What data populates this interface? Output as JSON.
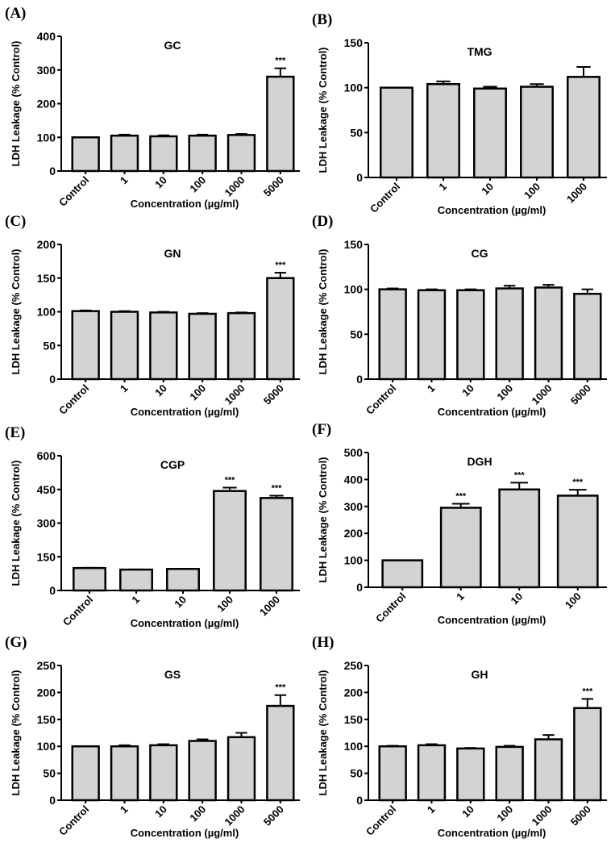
{
  "chart_data": [
    {
      "panel": "(A)",
      "type": "bar",
      "title": "GC",
      "categories": [
        "Control",
        "1",
        "10",
        "100",
        "1000",
        "5000"
      ],
      "values": [
        100,
        105,
        103,
        105,
        107,
        280
      ],
      "errors": [
        0,
        3,
        3,
        3,
        3,
        25
      ],
      "significance": [
        "",
        "",
        "",
        "",
        "",
        "***"
      ],
      "ylim": [
        0,
        400
      ],
      "yticks": [
        0,
        100,
        200,
        300,
        400
      ],
      "xlabel": "Concentration (µg/ml)",
      "ylabel": "LDH Leakage (% Control)"
    },
    {
      "panel": "(B)",
      "type": "bar",
      "title": "TMG",
      "categories": [
        "Control",
        "1",
        "10",
        "100",
        "1000"
      ],
      "values": [
        100,
        104,
        99,
        101,
        112
      ],
      "errors": [
        0,
        3,
        2,
        3,
        11
      ],
      "significance": [
        "",
        "",
        "",
        "",
        ""
      ],
      "ylim": [
        0,
        150
      ],
      "yticks": [
        0,
        50,
        100,
        150
      ],
      "xlabel": "Concentration (µg/ml)",
      "ylabel": "LDH Leakage (% Control)"
    },
    {
      "panel": "(C)",
      "type": "bar",
      "title": "GN",
      "categories": [
        "Control",
        "1",
        "10",
        "100",
        "1000",
        "5000"
      ],
      "values": [
        101,
        100,
        99,
        97,
        98,
        150
      ],
      "errors": [
        1,
        1,
        1,
        1,
        1,
        8
      ],
      "significance": [
        "",
        "",
        "",
        "",
        "",
        "***"
      ],
      "ylim": [
        0,
        200
      ],
      "yticks": [
        0,
        50,
        100,
        150,
        200
      ],
      "xlabel": "Concentration (µg/ml)",
      "ylabel": "LDH Leakage (% Control)"
    },
    {
      "panel": "(D)",
      "type": "bar",
      "title": "CG",
      "categories": [
        "Control",
        "1",
        "10",
        "100",
        "1000",
        "5000"
      ],
      "values": [
        100,
        99,
        99,
        101,
        102,
        95
      ],
      "errors": [
        1,
        1,
        1,
        3,
        3,
        5
      ],
      "significance": [
        "",
        "",
        "",
        "",
        "",
        ""
      ],
      "ylim": [
        0,
        150
      ],
      "yticks": [
        0,
        50,
        100,
        150
      ],
      "xlabel": "Concentration (µg/ml)",
      "ylabel": "LDH Leakage (% Control)"
    },
    {
      "panel": "(E)",
      "type": "bar",
      "title": "CGP",
      "categories": [
        "Control",
        "1",
        "10",
        "100",
        "1000"
      ],
      "values": [
        100,
        93,
        96,
        443,
        412
      ],
      "errors": [
        1,
        1,
        1,
        15,
        10
      ],
      "significance": [
        "",
        "",
        "",
        "***",
        "***"
      ],
      "ylim": [
        0,
        600
      ],
      "yticks": [
        0,
        150,
        300,
        450,
        600
      ],
      "xlabel": "Concentration (µg/ml)",
      "ylabel": "LDH Leakage (% Control)"
    },
    {
      "panel": "(F)",
      "type": "bar",
      "title": "DGH",
      "categories": [
        "Control",
        "1",
        "10",
        "100"
      ],
      "values": [
        100,
        295,
        363,
        340
      ],
      "errors": [
        0,
        15,
        25,
        22
      ],
      "significance": [
        "",
        "***",
        "***",
        "***"
      ],
      "ylim": [
        0,
        500
      ],
      "yticks": [
        0,
        100,
        200,
        300,
        400,
        500
      ],
      "xlabel": "Concentration (µg/ml)",
      "ylabel": "LDH Leakage (% Control)"
    },
    {
      "panel": "(G)",
      "type": "bar",
      "title": "GS",
      "categories": [
        "Control",
        "1",
        "10",
        "100",
        "1000",
        "5000"
      ],
      "values": [
        100,
        100,
        102,
        110,
        117,
        175
      ],
      "errors": [
        0,
        2,
        2,
        3,
        8,
        20
      ],
      "significance": [
        "",
        "",
        "",
        "",
        "",
        "***"
      ],
      "ylim": [
        0,
        250
      ],
      "yticks": [
        0,
        50,
        100,
        150,
        200,
        250
      ],
      "xlabel": "Concentration (µg/ml)",
      "ylabel": "LDH Leakage (% Control)"
    },
    {
      "panel": "(H)",
      "type": "bar",
      "title": "GH",
      "categories": [
        "Control",
        "1",
        "10",
        "100",
        "1000",
        "5000"
      ],
      "values": [
        100,
        102,
        96,
        99,
        113,
        171
      ],
      "errors": [
        1,
        2,
        1,
        2,
        8,
        17
      ],
      "significance": [
        "",
        "",
        "",
        "",
        "",
        "***"
      ],
      "ylim": [
        0,
        250
      ],
      "yticks": [
        0,
        50,
        100,
        150,
        200,
        250
      ],
      "xlabel": "Concentration (µg/ml)",
      "ylabel": "LDH Leakage (% Control)"
    }
  ],
  "colors": {
    "bar_fill": "#d3d3d3",
    "stroke": "#000000"
  }
}
